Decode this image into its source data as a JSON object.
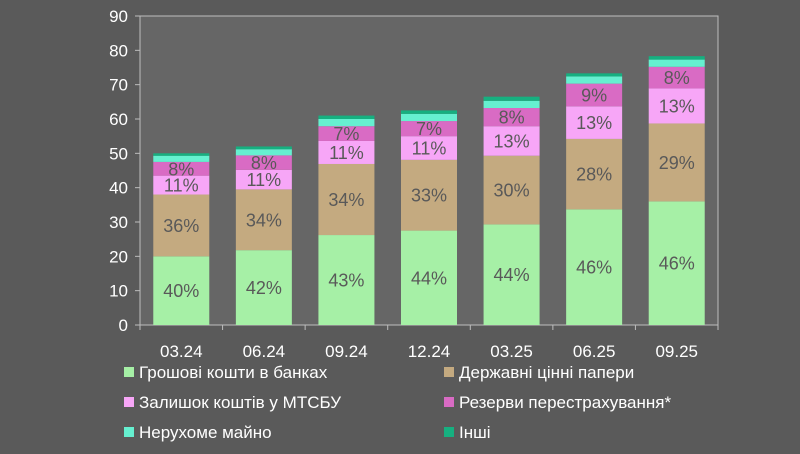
{
  "chart_data": {
    "type": "bar",
    "stacked": true,
    "categories": [
      "03.24",
      "06.24",
      "09.24",
      "12.24",
      "03.25",
      "06.25",
      "09.25"
    ],
    "ylim": [
      0,
      90
    ],
    "yticks": [
      0,
      10,
      20,
      30,
      40,
      50,
      60,
      70,
      80,
      90
    ],
    "grid": false,
    "legend_position": "bottom",
    "totals": [
      50.0,
      52.0,
      61.0,
      62.5,
      66.5,
      73.3,
      78.3
    ],
    "series": [
      {
        "name": "Грошові кошти в банках",
        "color": "#a6f0a6",
        "values": [
          20.0,
          21.8,
          26.2,
          27.5,
          29.3,
          33.7,
          36.0
        ],
        "labels": [
          "40%",
          "42%",
          "43%",
          "44%",
          "44%",
          "46%",
          "46%"
        ]
      },
      {
        "name": "Державні цінні папери",
        "color": "#c4aa80",
        "values": [
          18.0,
          17.7,
          20.7,
          20.6,
          20.0,
          20.5,
          22.7
        ],
        "labels": [
          "36%",
          "34%",
          "34%",
          "33%",
          "30%",
          "28%",
          "29%"
        ]
      },
      {
        "name": "Залишок коштів у МТСБУ",
        "color": "#f7a6f7",
        "values": [
          5.5,
          5.7,
          6.7,
          6.9,
          8.6,
          9.5,
          10.2
        ],
        "labels": [
          "11%",
          "11%",
          "11%",
          "11%",
          "13%",
          "13%",
          "13%"
        ]
      },
      {
        "name": "Резерви перестрахування*",
        "color": "#d96bc4",
        "values": [
          4.0,
          4.2,
          4.3,
          4.4,
          5.3,
          6.6,
          6.3
        ],
        "labels": [
          "8%",
          "8%",
          "7%",
          "7%",
          "8%",
          "9%",
          "8%"
        ]
      },
      {
        "name": "Нерухоме майно",
        "color": "#66f0d0",
        "values": [
          1.8,
          1.8,
          2.1,
          2.1,
          2.1,
          2.1,
          2.1
        ],
        "labels": [
          "",
          "",
          "",
          "",
          "",
          "",
          ""
        ]
      },
      {
        "name": "Інші",
        "color": "#16b080",
        "values": [
          0.7,
          0.8,
          1.0,
          1.0,
          1.2,
          0.9,
          1.0
        ],
        "labels": [
          "",
          "",
          "",
          "",
          "",
          "",
          ""
        ]
      }
    ]
  }
}
